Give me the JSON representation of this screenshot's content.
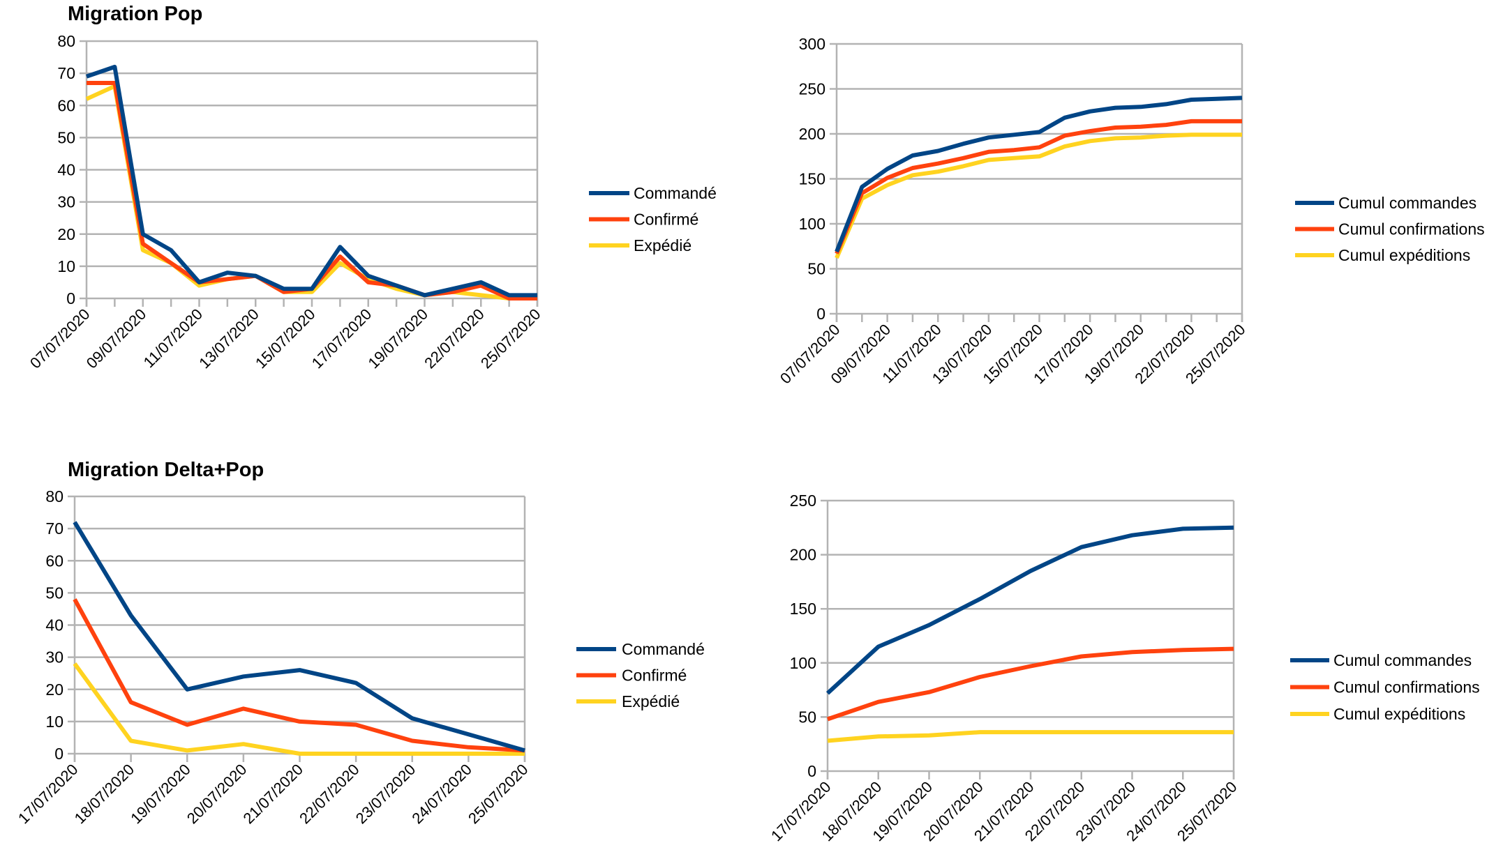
{
  "colors": {
    "commande": "#004586",
    "confirme": "#ff420e",
    "expedie": "#ffd320",
    "grid": "#b3b3b3"
  },
  "chart_data": [
    {
      "id": "pop-daily",
      "type": "line",
      "title": "Migration Pop",
      "xlabel": "",
      "ylabel": "",
      "ylim": [
        0,
        80
      ],
      "ystep": 10,
      "grid": true,
      "legend_position": "right",
      "point_count": 17,
      "x_tick_labels": [
        "07/07/2020",
        "09/07/2020",
        "11/07/2020",
        "13/07/2020",
        "15/07/2020",
        "17/07/2020",
        "19/07/2020",
        "22/07/2020",
        "25/07/2020"
      ],
      "x_label_every": 2,
      "series": [
        {
          "name": "Commandé",
          "color_key": "commande",
          "values": [
            69,
            72,
            20,
            15,
            5,
            8,
            7,
            3,
            3,
            16,
            7,
            4,
            1,
            3,
            5,
            1,
            1
          ]
        },
        {
          "name": "Confirmé",
          "color_key": "confirme",
          "values": [
            67,
            67,
            17,
            11,
            5,
            6,
            7,
            2,
            3,
            13,
            5,
            4,
            1,
            2,
            4,
            0,
            0
          ]
        },
        {
          "name": "Expédié",
          "color_key": "expedie",
          "values": [
            62,
            66,
            15,
            11,
            4,
            6,
            7,
            2,
            2,
            11,
            6,
            3,
            1,
            2,
            1,
            0,
            0
          ]
        }
      ]
    },
    {
      "id": "pop-cumul",
      "type": "line",
      "title": "",
      "xlabel": "",
      "ylabel": "",
      "ylim": [
        0,
        300
      ],
      "ystep": 50,
      "grid": true,
      "legend_position": "right",
      "point_count": 17,
      "x_tick_labels": [
        "07/07/2020",
        "09/07/2020",
        "11/07/2020",
        "13/07/2020",
        "15/07/2020",
        "17/07/2020",
        "19/07/2020",
        "22/07/2020",
        "25/07/2020"
      ],
      "x_label_every": 2,
      "series": [
        {
          "name": "Cumul commandes",
          "color_key": "commande",
          "values": [
            69,
            141,
            161,
            176,
            181,
            189,
            196,
            199,
            202,
            218,
            225,
            229,
            230,
            233,
            238,
            239,
            240
          ]
        },
        {
          "name": "Cumul confirmations",
          "color_key": "confirme",
          "values": [
            67,
            134,
            151,
            162,
            167,
            173,
            180,
            182,
            185,
            198,
            203,
            207,
            208,
            210,
            214,
            214,
            214
          ]
        },
        {
          "name": "Cumul expéditions",
          "color_key": "expedie",
          "values": [
            62,
            128,
            143,
            154,
            158,
            164,
            171,
            173,
            175,
            186,
            192,
            195,
            196,
            198,
            199,
            199,
            199
          ]
        }
      ]
    },
    {
      "id": "deltapop-daily",
      "type": "line",
      "title": "Migration Delta+Pop",
      "xlabel": "",
      "ylabel": "",
      "ylim": [
        0,
        80
      ],
      "ystep": 10,
      "grid": true,
      "legend_position": "right",
      "point_count": 9,
      "x_tick_labels": [
        "17/07/2020",
        "18/07/2020",
        "19/07/2020",
        "20/07/2020",
        "21/07/2020",
        "22/07/2020",
        "23/07/2020",
        "24/07/2020",
        "25/07/2020"
      ],
      "x_label_every": 1,
      "series": [
        {
          "name": "Commandé",
          "color_key": "commande",
          "values": [
            72,
            43,
            20,
            24,
            26,
            22,
            11,
            6,
            1
          ]
        },
        {
          "name": "Confirmé",
          "color_key": "confirme",
          "values": [
            48,
            16,
            9,
            14,
            10,
            9,
            4,
            2,
            1
          ]
        },
        {
          "name": "Expédié",
          "color_key": "expedie",
          "values": [
            28,
            4,
            1,
            3,
            0,
            0,
            0,
            0,
            0
          ]
        }
      ]
    },
    {
      "id": "deltapop-cumul",
      "type": "line",
      "title": "",
      "xlabel": "",
      "ylabel": "",
      "ylim": [
        0,
        250
      ],
      "ystep": 50,
      "grid": true,
      "legend_position": "right",
      "point_count": 9,
      "x_tick_labels": [
        "17/07/2020",
        "18/07/2020",
        "19/07/2020",
        "20/07/2020",
        "21/07/2020",
        "22/07/2020",
        "23/07/2020",
        "24/07/2020",
        "25/07/2020"
      ],
      "x_label_every": 1,
      "series": [
        {
          "name": "Cumul commandes",
          "color_key": "commande",
          "values": [
            72,
            115,
            135,
            159,
            185,
            207,
            218,
            224,
            225
          ]
        },
        {
          "name": "Cumul confirmations",
          "color_key": "confirme",
          "values": [
            48,
            64,
            73,
            87,
            97,
            106,
            110,
            112,
            113
          ]
        },
        {
          "name": "Cumul expéditions",
          "color_key": "expedie",
          "values": [
            28,
            32,
            33,
            36,
            36,
            36,
            36,
            36,
            36
          ]
        }
      ]
    }
  ]
}
